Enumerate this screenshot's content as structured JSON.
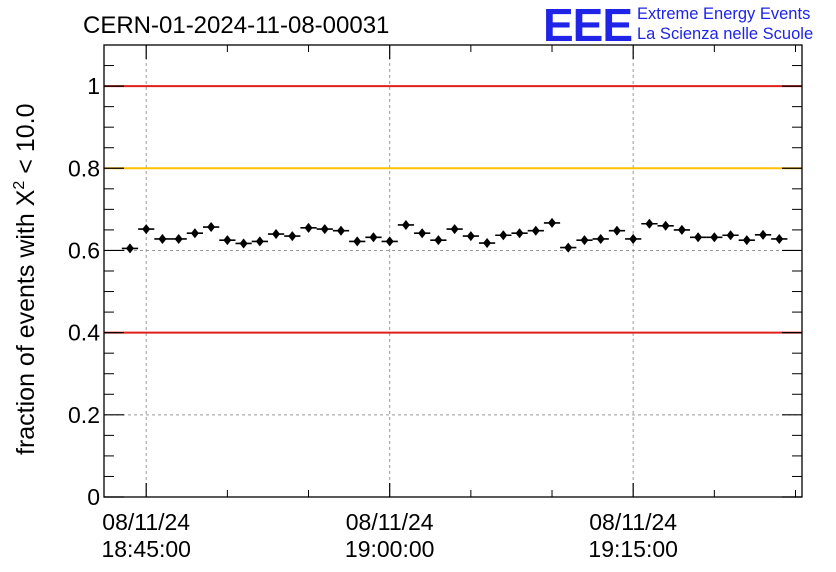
{
  "chart_data": {
    "type": "scatter",
    "title": "CERN-01-2024-11-08-00031",
    "ylabel": "fraction of events with χ² < 10.0",
    "ylabel_parts": {
      "main": "fraction of events with ",
      "symbol": "X",
      "exponent": "2",
      "tail": " < 10.0"
    },
    "xlabel": "",
    "xlim_minutes": [
      18.4,
      23.4
    ],
    "ylim": [
      0,
      1.1
    ],
    "y_ticks": [
      {
        "value": 0,
        "label": "0"
      },
      {
        "value": 0.2,
        "label": "0.2"
      },
      {
        "value": 0.4,
        "label": "0.4"
      },
      {
        "value": 0.6,
        "label": "0.6"
      },
      {
        "value": 0.8,
        "label": "0.8"
      },
      {
        "value": 1,
        "label": "1"
      }
    ],
    "x_ticks": [
      {
        "value": "18:45:00",
        "date": "08/11/24",
        "time": "18:45:00"
      },
      {
        "value": "19:00:00",
        "date": "08/11/24",
        "time": "19:00:00"
      },
      {
        "value": "19:15:00",
        "date": "08/11/24",
        "time": "19:15:00"
      }
    ],
    "reference_lines": [
      {
        "y": 1.0,
        "color": "#e0201a"
      },
      {
        "y": 0.8,
        "color": "#ffc000"
      },
      {
        "y": 0.4,
        "color": "#e0201a"
      }
    ],
    "grid": true,
    "marker_color": "#000000",
    "series": [
      {
        "x": [
          "18:44:00",
          "18:45:00",
          "18:46:00",
          "18:47:00",
          "18:48:00",
          "18:49:00",
          "18:50:00",
          "18:51:00",
          "18:52:00",
          "18:53:00",
          "18:54:00",
          "18:55:00",
          "18:56:00",
          "18:57:00",
          "18:58:00",
          "18:59:00",
          "19:00:00",
          "19:01:00",
          "19:02:00",
          "19:03:00",
          "19:04:00",
          "19:05:00",
          "19:06:00",
          "19:07:00",
          "19:08:00",
          "19:09:00",
          "19:10:00",
          "19:11:00",
          "19:12:00",
          "19:13:00",
          "19:14:00",
          "19:15:00",
          "19:16:00",
          "19:17:00",
          "19:18:00",
          "19:19:00",
          "19:20:00",
          "19:21:00",
          "19:22:00",
          "19:23:00",
          "19:24:00"
        ],
        "y": [
          0.605,
          0.652,
          0.628,
          0.628,
          0.642,
          0.657,
          0.625,
          0.617,
          0.622,
          0.64,
          0.635,
          0.655,
          0.652,
          0.648,
          0.622,
          0.632,
          0.622,
          0.662,
          0.642,
          0.625,
          0.652,
          0.635,
          0.618,
          0.637,
          0.642,
          0.648,
          0.667,
          0.607,
          0.625,
          0.628,
          0.648,
          0.628,
          0.665,
          0.66,
          0.65,
          0.632,
          0.632,
          0.637,
          0.625,
          0.638,
          0.628
        ],
        "error": [
          0.01,
          0.01,
          0.01,
          0.01,
          0.01,
          0.01,
          0.01,
          0.01,
          0.01,
          0.01,
          0.01,
          0.01,
          0.01,
          0.01,
          0.01,
          0.01,
          0.01,
          0.01,
          0.01,
          0.01,
          0.01,
          0.01,
          0.01,
          0.01,
          0.01,
          0.01,
          0.01,
          0.01,
          0.01,
          0.01,
          0.01,
          0.01,
          0.01,
          0.01,
          0.01,
          0.01,
          0.01,
          0.01,
          0.01,
          0.01,
          0.01
        ]
      }
    ]
  },
  "logo": {
    "mark": "EEE",
    "line1": "Extreme Energy Events",
    "line2": "La Scienza nelle Scuole",
    "color": "#1f24e6"
  }
}
